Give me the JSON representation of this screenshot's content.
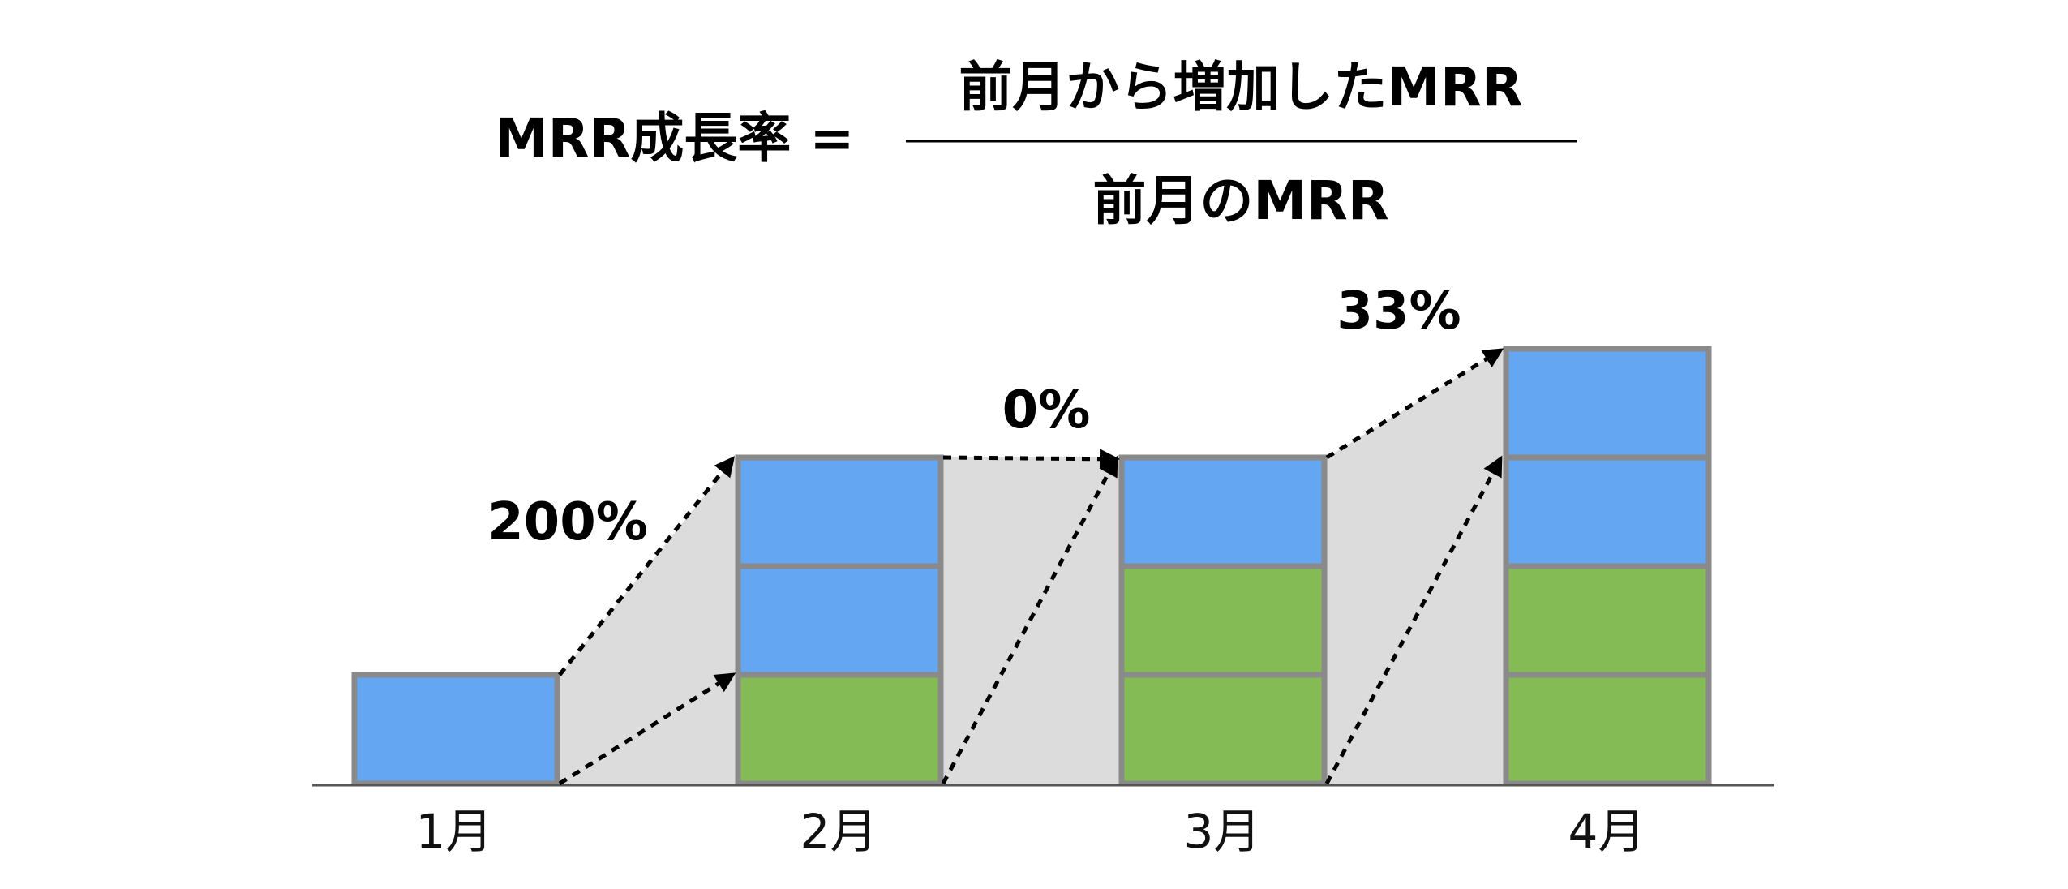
{
  "formula": {
    "lhs": "MRR成長率 =",
    "numerator": "前月から増加したMRR",
    "denominator": "前月のMRR"
  },
  "months": [
    {
      "label": "1月",
      "blocks": [
        "new"
      ]
    },
    {
      "label": "2月",
      "blocks": [
        "existing",
        "new",
        "new"
      ]
    },
    {
      "label": "3月",
      "blocks": [
        "existing",
        "existing",
        "new"
      ]
    },
    {
      "label": "4月",
      "blocks": [
        "existing",
        "existing",
        "new",
        "new"
      ]
    }
  ],
  "growth": [
    {
      "label": "200%"
    },
    {
      "label": "0%"
    },
    {
      "label": "33%"
    }
  ],
  "colors": {
    "new": "#64a6f2",
    "existing": "#85bb55",
    "border": "#8a8a8a",
    "band": "#dcdcdc",
    "arrow": "#000000",
    "axis": "#555555"
  }
}
